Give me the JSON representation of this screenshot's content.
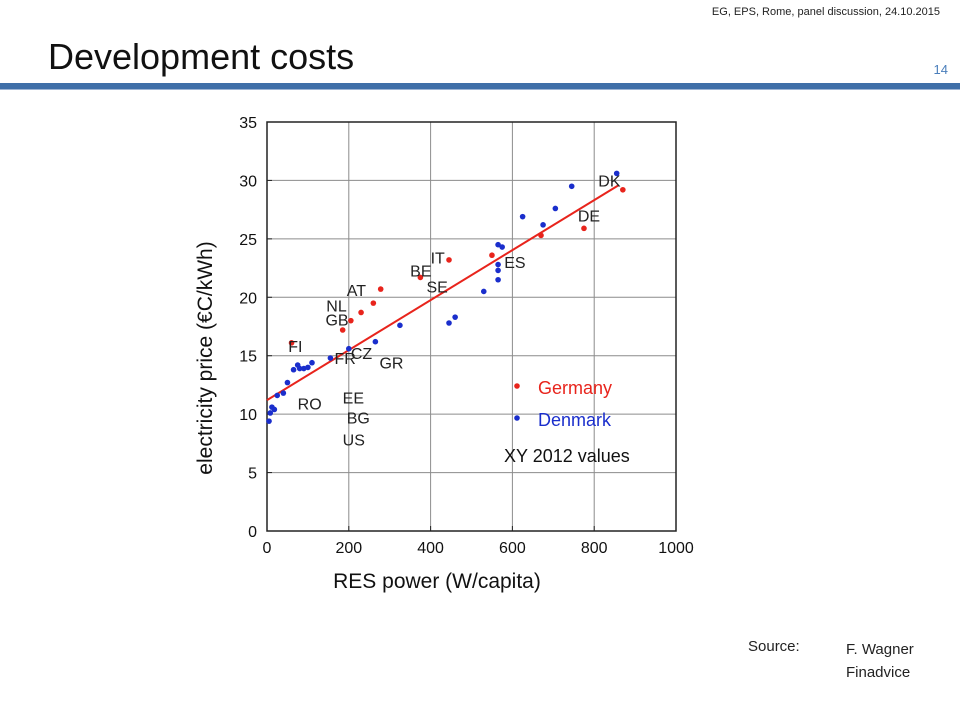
{
  "header": {
    "note": "EG, EPS, Rome, panel discussion, 24.10.2015",
    "page_number": "14"
  },
  "slide": {
    "title": "Development costs"
  },
  "source": {
    "label": "Source:",
    "name_line1": "F. Wagner",
    "name_line2": "Finadvice"
  },
  "colors": {
    "germany": "#e8241c",
    "denmark": "#1a2ecc",
    "fit_line": "#e8241c",
    "title_rule": "#3f6fa8"
  },
  "chart_data": {
    "type": "scatter",
    "title": "",
    "xlabel": "RES power (W/capita)",
    "ylabel": "electricity price (€C/kWh)",
    "xlim": [
      0,
      1000
    ],
    "ylim": [
      0,
      35
    ],
    "xticks": [
      0,
      200,
      400,
      600,
      800,
      1000
    ],
    "yticks": [
      0,
      5,
      10,
      15,
      20,
      25,
      30,
      35
    ],
    "grid": true,
    "legend": {
      "position": "bottom-right",
      "entries": [
        "Germany",
        "Denmark"
      ],
      "note": "XY 2012 values"
    },
    "fit_line": {
      "x": [
        0,
        860
      ],
      "y": [
        11.2,
        29.6
      ]
    },
    "series": [
      {
        "name": "Germany",
        "points": [
          [
            60,
            16.1
          ],
          [
            185,
            17.2
          ],
          [
            205,
            18.0
          ],
          [
            230,
            18.7
          ],
          [
            260,
            19.5
          ],
          [
            278,
            20.7
          ],
          [
            375,
            21.7
          ],
          [
            445,
            23.2
          ],
          [
            550,
            23.6
          ],
          [
            670,
            25.3
          ],
          [
            775,
            25.9
          ],
          [
            870,
            29.2
          ]
        ]
      },
      {
        "name": "Denmark",
        "points": [
          [
            5,
            9.4
          ],
          [
            8,
            10.1
          ],
          [
            12,
            10.6
          ],
          [
            18,
            10.4
          ],
          [
            25,
            11.6
          ],
          [
            40,
            11.8
          ],
          [
            50,
            12.7
          ],
          [
            65,
            13.8
          ],
          [
            75,
            14.2
          ],
          [
            80,
            13.9
          ],
          [
            90,
            13.9
          ],
          [
            100,
            14.0
          ],
          [
            110,
            14.4
          ],
          [
            155,
            14.8
          ],
          [
            200,
            15.6
          ],
          [
            265,
            16.2
          ],
          [
            325,
            17.6
          ],
          [
            445,
            17.8
          ],
          [
            460,
            18.3
          ],
          [
            530,
            20.5
          ],
          [
            565,
            21.5
          ],
          [
            565,
            22.3
          ],
          [
            565,
            22.8
          ],
          [
            565,
            24.5
          ],
          [
            575,
            24.3
          ],
          [
            625,
            26.9
          ],
          [
            675,
            26.2
          ],
          [
            705,
            27.6
          ],
          [
            745,
            29.5
          ],
          [
            855,
            30.6
          ]
        ]
      }
    ],
    "annotations": [
      {
        "text": "DK",
        "x": 810,
        "y": 29.5
      },
      {
        "text": "DE",
        "x": 760,
        "y": 26.5
      },
      {
        "text": "IT",
        "x": 400,
        "y": 22.9
      },
      {
        "text": "BE",
        "x": 350,
        "y": 21.8
      },
      {
        "text": "SE",
        "x": 390,
        "y": 20.4
      },
      {
        "text": "ES",
        "x": 580,
        "y": 22.5
      },
      {
        "text": "AT",
        "x": 195,
        "y": 20.1
      },
      {
        "text": "NL",
        "x": 145,
        "y": 18.8
      },
      {
        "text": "GB",
        "x": 143,
        "y": 17.6
      },
      {
        "text": "FI",
        "x": 52,
        "y": 15.3
      },
      {
        "text": "CZ",
        "x": 205,
        "y": 14.7
      },
      {
        "text": "FR",
        "x": 165,
        "y": 14.3
      },
      {
        "text": "GR",
        "x": 275,
        "y": 13.9
      },
      {
        "text": "RO",
        "x": 75,
        "y": 10.4
      },
      {
        "text": "EE",
        "x": 185,
        "y": 10.9
      },
      {
        "text": "BG",
        "x": 195,
        "y": 9.2
      },
      {
        "text": "US",
        "x": 185,
        "y": 7.3
      }
    ]
  }
}
